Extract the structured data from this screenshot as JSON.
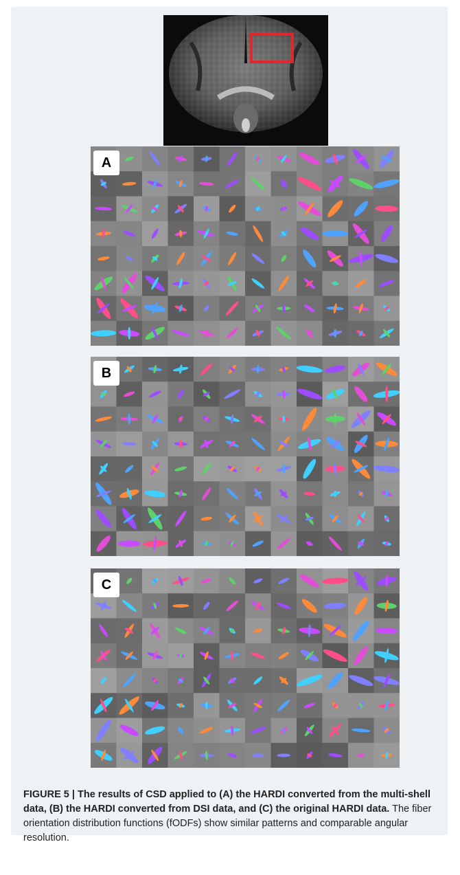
{
  "figure": {
    "label": "FIGURE 5",
    "separator": " | ",
    "title": "The results of CSD applied to (A) the HARDI converted from the multi-shell data, (B) the HARDI converted from DSI data, and (C) the original HARDI data.",
    "description": "The fiber orientation distribution functions (fODFs) show similar patterns and comparable angular resolution."
  },
  "panels": [
    {
      "label": "A"
    },
    {
      "label": "B"
    },
    {
      "label": "C"
    }
  ],
  "colors": {
    "background": "#eef2f5",
    "roi_box": "#e3262b",
    "label_box": "#ffffff"
  }
}
